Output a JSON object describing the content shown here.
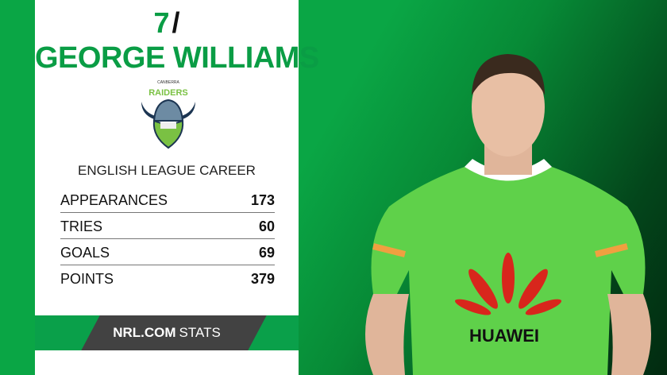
{
  "header": {
    "number": "7",
    "slash": "/",
    "name": "GEORGE WILLIAMS"
  },
  "club_logo": {
    "top": "CANBERRA",
    "main": "RAIDERS",
    "icon": "raiders-viking-logo"
  },
  "stats": {
    "title": "ENGLISH LEAGUE CAREER",
    "rows": [
      {
        "label": "APPEARANCES",
        "value": "173"
      },
      {
        "label": "TRIES",
        "value": "60"
      },
      {
        "label": "GOALS",
        "value": "69"
      },
      {
        "label": "POINTS",
        "value": "379"
      }
    ]
  },
  "footer": {
    "brand_bold": "NRL.COM",
    "brand_light": "STATS"
  },
  "jersey": {
    "sponsor": "HUAWEI"
  },
  "colors": {
    "green": "#0a9d45",
    "dark": "#424242"
  }
}
